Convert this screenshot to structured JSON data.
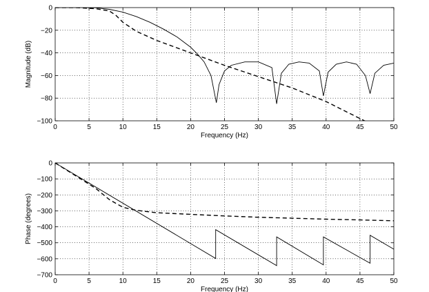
{
  "chart_data": [
    {
      "type": "line",
      "title": "",
      "xlabel": "Frequency (Hz)",
      "ylabel": "Magnitude (dB)",
      "xlim": [
        0,
        50
      ],
      "ylim": [
        -100,
        0
      ],
      "xticks": [
        0,
        5,
        10,
        15,
        20,
        25,
        30,
        35,
        40,
        45,
        50
      ],
      "yticks": [
        0,
        -20,
        -40,
        -60,
        -80,
        -100
      ],
      "grid": true,
      "series": [
        {
          "style": "solid",
          "x": [
            0,
            2,
            4,
            6,
            8,
            10,
            12,
            14,
            16,
            18,
            20,
            21,
            22,
            23,
            23.4,
            23.8,
            24.2,
            25,
            26,
            28,
            30,
            32,
            32.7,
            33.4,
            34.5,
            36,
            37.5,
            39,
            39.6,
            40.3,
            41.5,
            43,
            44.5,
            45.8,
            46.5,
            47.2,
            48.5,
            50
          ],
          "y": [
            0,
            0,
            0,
            -0.2,
            -1.5,
            -4,
            -8,
            -13,
            -19,
            -26,
            -35,
            -41,
            -48,
            -60,
            -72,
            -84,
            -68,
            -56,
            -51,
            -48,
            -48,
            -53,
            -85,
            -58,
            -50,
            -48,
            -49,
            -56,
            -78,
            -57,
            -50,
            -48,
            -50,
            -60,
            -76,
            -58,
            -51,
            -49
          ]
        },
        {
          "style": "dashed",
          "x": [
            0,
            3,
            6,
            8,
            9,
            10,
            12,
            15,
            20,
            25,
            30,
            35,
            40,
            42,
            44,
            46,
            48,
            50
          ],
          "y": [
            0,
            0,
            -1,
            -3,
            -7,
            -13,
            -21,
            -29,
            -40,
            -51,
            -61,
            -71,
            -83,
            -89,
            -95,
            -101,
            -107,
            -113
          ]
        }
      ]
    },
    {
      "type": "line",
      "title": "",
      "xlabel": "Frequency (Hz)",
      "ylabel": "Phase (degrees)",
      "xlim": [
        0,
        50
      ],
      "ylim": [
        -700,
        0
      ],
      "xticks": [
        0,
        5,
        10,
        15,
        20,
        25,
        30,
        35,
        40,
        45,
        50
      ],
      "yticks": [
        0,
        -100,
        -200,
        -300,
        -400,
        -500,
        -600,
        -700
      ],
      "grid": true,
      "series": [
        {
          "style": "solid",
          "x": [
            0,
            23.7,
            23.7,
            32.7,
            32.7,
            39.6,
            39.6,
            46.5,
            46.5,
            50
          ],
          "y": [
            0,
            -598,
            -418,
            -643,
            -463,
            -638,
            -463,
            -628,
            -453,
            -540
          ]
        },
        {
          "style": "dashed",
          "x": [
            0,
            3,
            6,
            8,
            10,
            12,
            15,
            20,
            25,
            30,
            35,
            40,
            45,
            50
          ],
          "y": [
            0,
            -80,
            -160,
            -230,
            -278,
            -297,
            -312,
            -322,
            -332,
            -340,
            -346,
            -352,
            -357,
            -362
          ]
        }
      ]
    }
  ]
}
